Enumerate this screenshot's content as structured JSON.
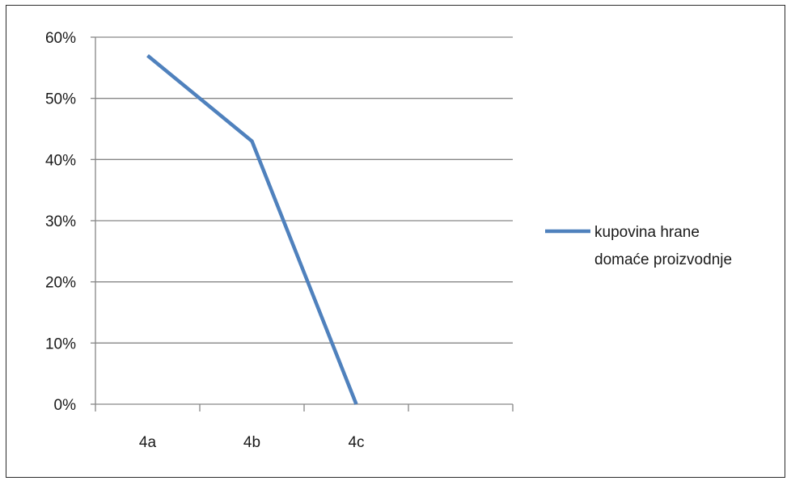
{
  "chart_data": {
    "type": "line",
    "categories": [
      "4a",
      "4b",
      "4c"
    ],
    "series": [
      {
        "name": "kupovina hrane domaće proizvodnje",
        "values": [
          0.57,
          0.43,
          0.0
        ],
        "color": "#4f81bd"
      }
    ],
    "ylim": [
      0,
      0.6
    ],
    "yticks": [
      0,
      0.1,
      0.2,
      0.3,
      0.4,
      0.5,
      0.6
    ],
    "ytick_labels": [
      "0%",
      "10%",
      "20%",
      "30%",
      "40%",
      "50%",
      "60%"
    ],
    "grid": true,
    "legend": {
      "placement": "right",
      "lines": [
        "kupovina hrane",
        "domaće proizvodnje"
      ]
    },
    "gridline_color": "#868686"
  }
}
